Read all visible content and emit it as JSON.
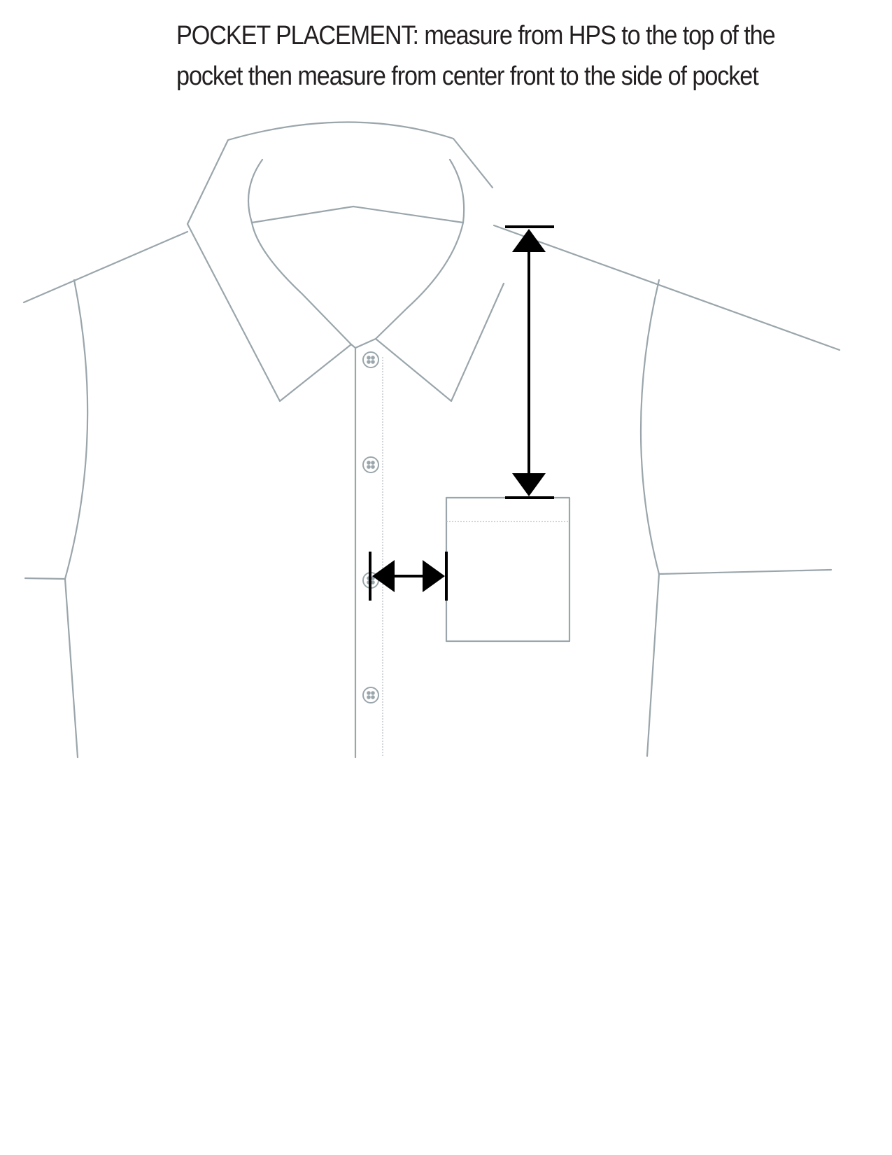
{
  "instruction": {
    "line1": "POCKET PLACEMENT:  measure from HPS to the top of the",
    "line2": "pocket then measure from center front to the side of pocket"
  },
  "colors": {
    "garment_line": "#9aa6ab",
    "stitch_line": "#b3bcc0",
    "measure_arrow": "#000000",
    "text": "#231f20",
    "background": "#ffffff"
  },
  "diagram": {
    "subject": "shirt-front-flat-sketch",
    "measurements": [
      {
        "id": "hps-to-pocket-top",
        "direction": "vertical"
      },
      {
        "id": "center-front-to-pocket-side",
        "direction": "horizontal"
      }
    ]
  }
}
